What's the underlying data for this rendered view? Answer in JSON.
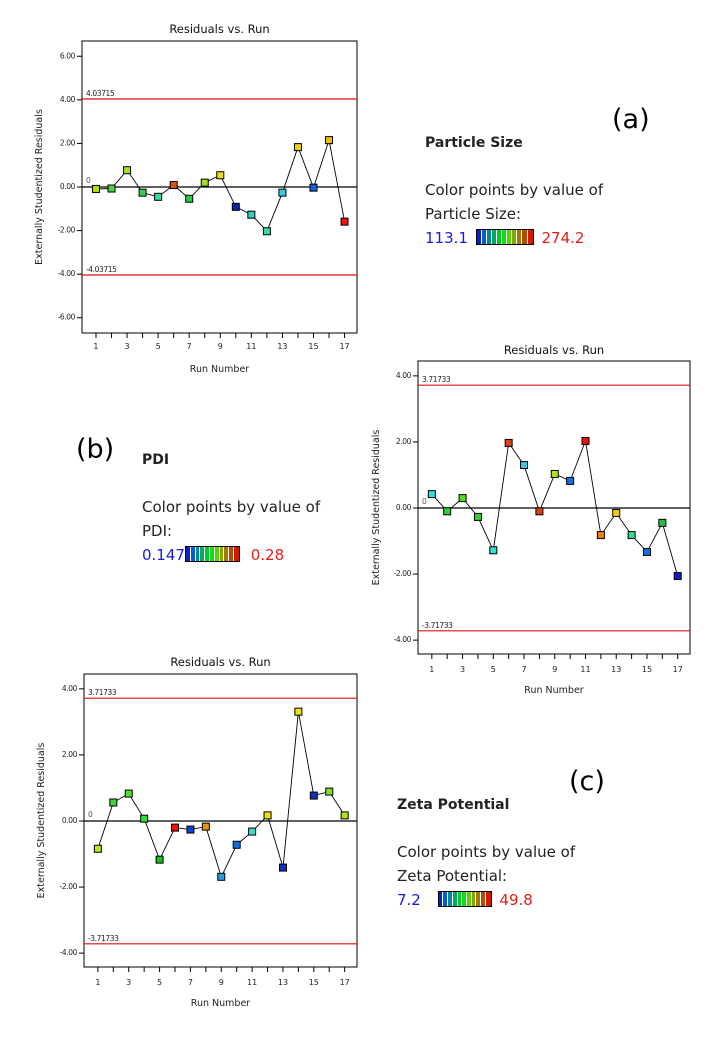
{
  "panels": {
    "a": {
      "label": "(a)",
      "response": "Particle Size",
      "legend_line1": "Color points by value of",
      "legend_line2": "Particle Size:",
      "low": "113.1",
      "high": "274.2"
    },
    "b": {
      "label": "(b)",
      "response": "PDI",
      "legend_line1": "Color points by value of",
      "legend_line2": "PDI:",
      "low": "0.147",
      "high": "0.28"
    },
    "c": {
      "label": "(c)",
      "response": "Zeta Potential",
      "legend_line1": "Color points by value of",
      "legend_line2": "Zeta Potential:",
      "low": "7.2",
      "high": "49.8"
    }
  },
  "ramp_colors": [
    "#0a1fd0",
    "#0a5cc8",
    "#07879a",
    "#05a860",
    "#05c830",
    "#10e010",
    "#5ad010",
    "#84a800",
    "#a07a00",
    "#b84a00",
    "#d01a00"
  ],
  "colors": {
    "limit_line": "#e01010",
    "zero_line": "#000000",
    "series_line": "#000000"
  },
  "chart_data": [
    {
      "id": "a",
      "type": "scatter",
      "title": "Residuals vs. Run",
      "xlabel": "Run Number",
      "ylabel": "Externally Studentized Residuals",
      "x": [
        1,
        2,
        3,
        4,
        5,
        6,
        7,
        8,
        9,
        10,
        11,
        12,
        13,
        14,
        15,
        16,
        17
      ],
      "y": [
        -0.09,
        -0.07,
        0.77,
        -0.26,
        -0.45,
        0.09,
        -0.54,
        0.2,
        0.54,
        -0.91,
        -1.27,
        -2.03,
        -0.26,
        1.83,
        -0.03,
        2.15,
        -1.59
      ],
      "point_colors": [
        "#b0e000",
        "#50d040",
        "#a8e020",
        "#30d050",
        "#30e0a0",
        "#e05010",
        "#20d040",
        "#a0e020",
        "#f0e000",
        "#1020b0",
        "#30d0c0",
        "#30e0b0",
        "#30d0e0",
        "#f0d000",
        "#1060e0",
        "#f0c000",
        "#f01010"
      ],
      "xticks": [
        1,
        3,
        5,
        7,
        9,
        11,
        13,
        15,
        17
      ],
      "yticks": [
        "6.00",
        "4.00",
        "2.00",
        "0.00",
        "-2.00",
        "-4.00",
        "-6.00"
      ],
      "ylim": [
        -6.7,
        6.7
      ],
      "xlim": [
        0.1,
        17.8
      ],
      "limits": [
        4.03715,
        -4.03715
      ],
      "limit_labels": [
        "4.03715",
        "-4.03715"
      ],
      "zero_label": "0",
      "grid": false
    },
    {
      "id": "b",
      "type": "scatter",
      "title": "Residuals vs. Run",
      "xlabel": "Run Number",
      "ylabel": "Externally Studentized Residuals",
      "x": [
        1,
        2,
        3,
        4,
        5,
        6,
        7,
        8,
        9,
        10,
        11,
        12,
        13,
        14,
        15,
        16,
        17
      ],
      "y": [
        0.42,
        -0.1,
        0.3,
        -0.27,
        -1.28,
        1.97,
        1.3,
        -0.1,
        1.03,
        0.82,
        2.03,
        -0.82,
        -0.15,
        -0.82,
        -1.33,
        -0.45,
        -2.06
      ],
      "point_colors": [
        "#30e0e0",
        "#30d030",
        "#50e020",
        "#30d030",
        "#30e0d0",
        "#e04010",
        "#30c8e0",
        "#e04010",
        "#b0e020",
        "#1070e0",
        "#f01010",
        "#f08010",
        "#f0d000",
        "#30e090",
        "#1070e0",
        "#20c040",
        "#1020c0"
      ],
      "xticks": [
        1,
        3,
        5,
        7,
        9,
        11,
        13,
        15,
        17
      ],
      "yticks": [
        "4.00",
        "2.00",
        "0.00",
        "-2.00",
        "-4.00"
      ],
      "ylim": [
        -4.42,
        4.45
      ],
      "xlim": [
        0.1,
        17.8
      ],
      "limits": [
        3.71733,
        -3.71733
      ],
      "limit_labels": [
        "3.71733",
        "-3.71733"
      ],
      "zero_label": "0",
      "grid": false
    },
    {
      "id": "c",
      "type": "scatter",
      "title": "Residuals vs. Run",
      "xlabel": "Run Number",
      "ylabel": "Externally Studentized Residuals",
      "x": [
        1,
        2,
        3,
        4,
        5,
        6,
        7,
        8,
        9,
        10,
        11,
        12,
        13,
        14,
        15,
        16,
        17
      ],
      "y": [
        -0.84,
        0.56,
        0.83,
        0.07,
        -1.17,
        -0.2,
        -0.26,
        -0.17,
        -1.69,
        -0.72,
        -0.32,
        0.17,
        -1.41,
        3.31,
        0.77,
        0.89,
        0.17
      ],
      "point_colors": [
        "#b8e820",
        "#40d040",
        "#50e030",
        "#30e030",
        "#10c020",
        "#f01010",
        "#1040d0",
        "#f09010",
        "#20a0e0",
        "#1070e0",
        "#30e0d0",
        "#f0e010",
        "#1030c0",
        "#f0e010",
        "#1030c0",
        "#80e030",
        "#b0e020"
      ],
      "xticks": [
        1,
        3,
        5,
        7,
        9,
        11,
        13,
        15,
        17
      ],
      "yticks": [
        "4.00",
        "2.00",
        "0.00",
        "-2.00",
        "-4.00"
      ],
      "ylim": [
        -4.42,
        4.45
      ],
      "xlim": [
        0.1,
        17.8
      ],
      "limits": [
        3.71733,
        -3.71733
      ],
      "limit_labels": [
        "3.71733",
        "-3.71733"
      ],
      "zero_label": "0",
      "grid": false
    }
  ]
}
